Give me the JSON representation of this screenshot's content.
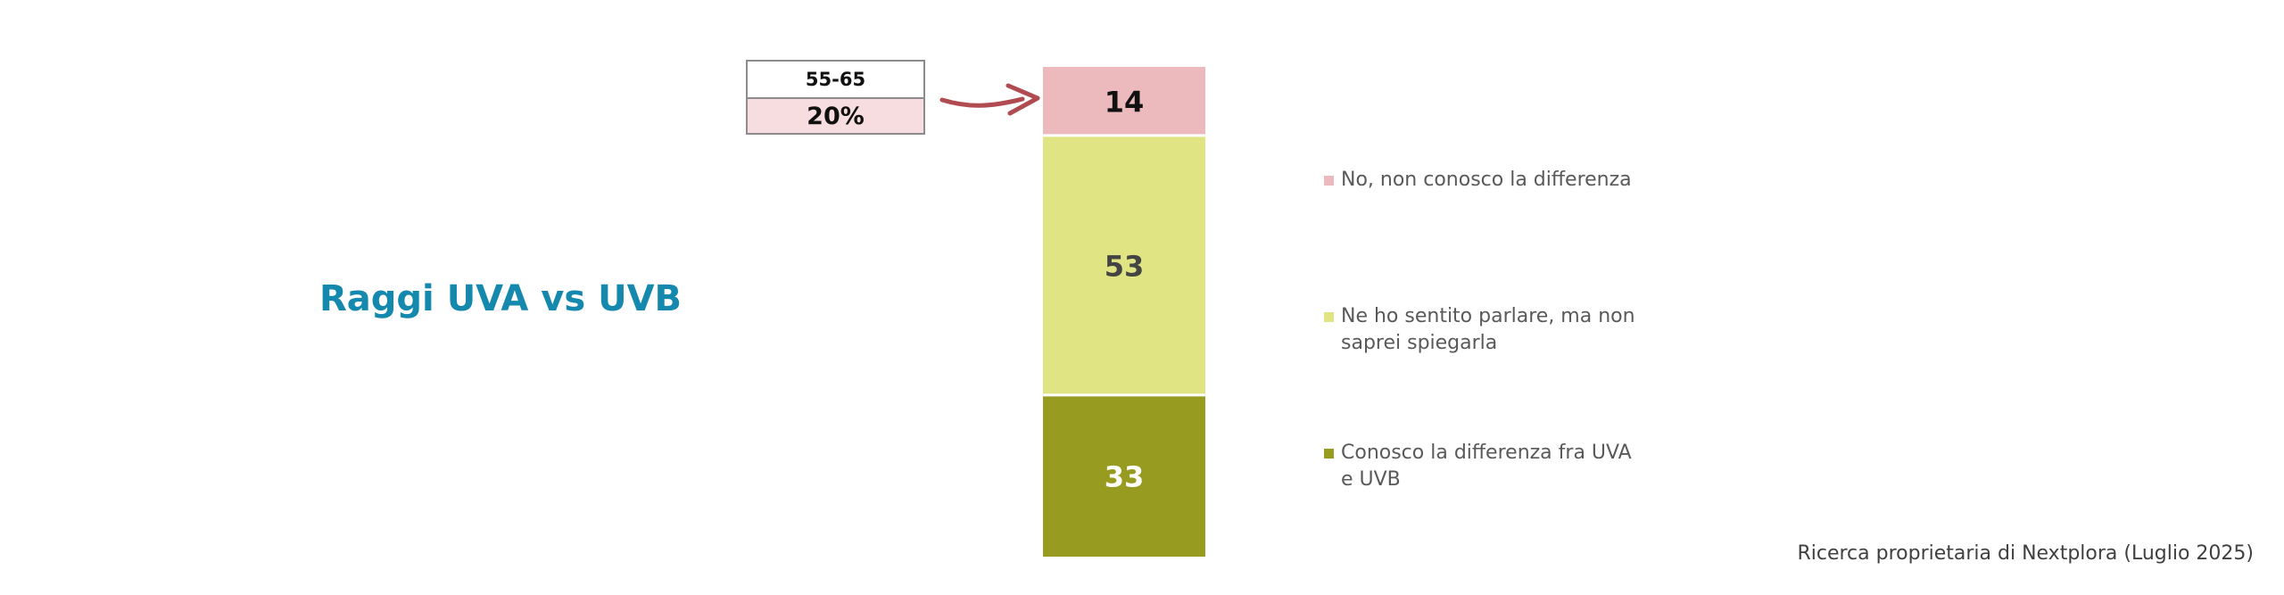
{
  "title": "Raggi UVA vs UVB",
  "callout": {
    "age_range": "55-65",
    "percent": "20%"
  },
  "source": "Ricerca proprietaria di Nextplora (Luglio 2025)",
  "colors": {
    "title": "#1588ad",
    "no": "#ecbabd",
    "heard": "#e0e483",
    "know": "#979c20",
    "arrow": "#b04b52"
  },
  "legend": [
    {
      "label": "No, non conosco la differenza",
      "color": "#ecbabd"
    },
    {
      "label": "Ne ho sentito parlare, ma non saprei spiegarla",
      "color": "#e0e483"
    },
    {
      "label": "Conosco la differenza fra UVA e UVB",
      "color": "#979c20"
    }
  ],
  "chart_data": {
    "type": "bar",
    "stacked": true,
    "categories": [
      ""
    ],
    "series": [
      {
        "name": "No, non conosco la differenza",
        "values": [
          14
        ]
      },
      {
        "name": "Ne ho sentito parlare, ma non saprei spiegarla",
        "values": [
          53
        ]
      },
      {
        "name": "Conosco la differenza fra UVA e UVB",
        "values": [
          33
        ]
      }
    ],
    "ylim": [
      0,
      100
    ],
    "grid": false,
    "legend_position": "right"
  }
}
